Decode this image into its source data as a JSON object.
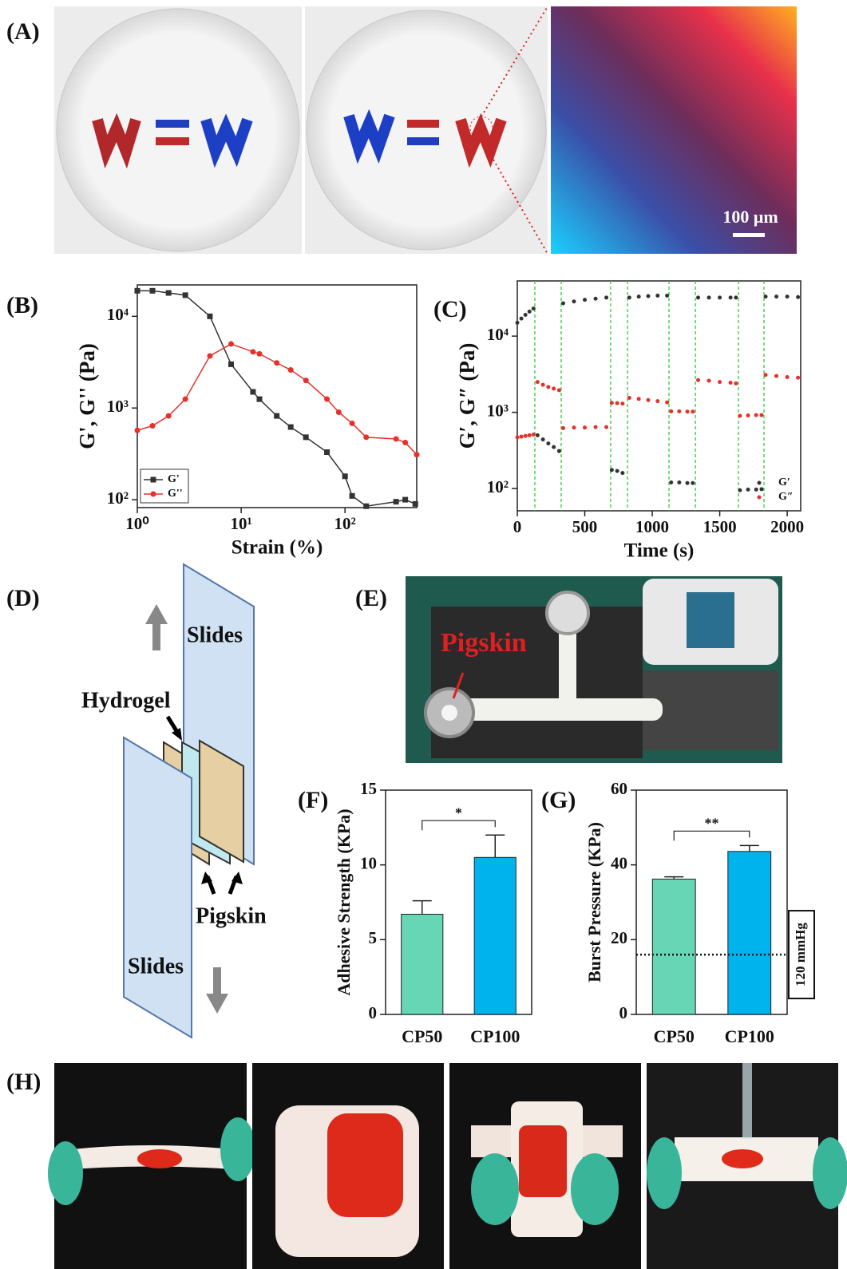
{
  "panel_labels": [
    "(A)",
    "(B)",
    "(C)",
    "(D)",
    "(E)",
    "(F)",
    "(G)",
    "(H)"
  ],
  "scale_bar": "100 μm",
  "diagram": {
    "top_slide": "Slides",
    "hydrogel": "Hydrogel",
    "pigskin": "Pigskin",
    "bottom_slide": "Slides"
  },
  "photo_label": "Pigskin",
  "chart_data": [
    {
      "type": "line",
      "y_label": "G', G'' (Pa)",
      "x_label": "Strain (%)",
      "xscale": "log",
      "yscale": "log",
      "xlim": [
        1,
        490
      ],
      "ylim": [
        82,
        22000
      ],
      "xticks": [
        {
          "value": 1,
          "label": "10⁰"
        },
        {
          "value": 10,
          "label": "10¹"
        },
        {
          "value": 100,
          "label": "10²"
        }
      ],
      "yticks": [
        {
          "value": 100,
          "label": "10²"
        },
        {
          "value": 1000,
          "label": "10³"
        },
        {
          "value": 10000,
          "label": "10⁴"
        }
      ],
      "legend": "lower left",
      "series": [
        {
          "name": "G'",
          "color": "#333333",
          "marker": "square",
          "x": [
            1,
            1.4,
            2,
            2.9,
            5,
            8,
            13,
            15,
            22,
            30,
            42,
            67,
            100,
            117,
            160,
            310,
            380,
            475
          ],
          "values": [
            19000,
            19000,
            18000,
            17000,
            10000,
            3000,
            1500,
            1250,
            820,
            620,
            480,
            330,
            180,
            110,
            85,
            95,
            100,
            90
          ]
        },
        {
          "name": "G''",
          "color": "#e8302a",
          "marker": "circle",
          "x": [
            1,
            1.4,
            2,
            2.9,
            5,
            8,
            13,
            15,
            22,
            30,
            42,
            67,
            87,
            117,
            160,
            310,
            380,
            490
          ],
          "values": [
            570,
            640,
            820,
            1250,
            3700,
            5000,
            4100,
            3900,
            3100,
            2600,
            2000,
            1250,
            900,
            680,
            480,
            460,
            420,
            310
          ]
        }
      ]
    },
    {
      "type": "scatter",
      "y_label": "G′, G″ (Pa)",
      "x_label": "Time (s)",
      "yscale": "log",
      "xlim": [
        0,
        2100
      ],
      "ylim": [
        51,
        53000
      ],
      "xticks": [
        0,
        500,
        1000,
        1500,
        2000
      ],
      "yticks": [
        {
          "value": 100,
          "label": "10²"
        },
        {
          "value": 1000,
          "label": "10³"
        },
        {
          "value": 10000,
          "label": "10⁴"
        }
      ],
      "legend": "lower right",
      "switch_times": [
        130,
        325,
        692,
        817,
        1124,
        1320,
        1639,
        1828
      ],
      "switch_color": "#33cc33",
      "x": [
        0,
        30,
        60,
        90,
        120,
        150,
        190,
        230,
        270,
        310,
        340,
        420,
        500,
        580,
        660,
        700,
        740,
        780,
        830,
        900,
        970,
        1040,
        1110,
        1140,
        1200,
        1260,
        1300,
        1340,
        1420,
        1500,
        1580,
        1620,
        1650,
        1710,
        1770,
        1810,
        1840,
        1920,
        2000,
        2080
      ],
      "series": [
        {
          "name": "G′",
          "color": "#333333",
          "values": [
            15000,
            17000,
            19000,
            21000,
            23000,
            500,
            440,
            390,
            350,
            310,
            27000,
            28500,
            30000,
            31000,
            32000,
            175,
            170,
            160,
            32000,
            33000,
            33500,
            34000,
            34000,
            120,
            120,
            118,
            118,
            32000,
            32000,
            32000,
            32000,
            32000,
            95,
            97,
            97,
            98,
            33000,
            33000,
            33000,
            32500
          ]
        },
        {
          "name": "G″",
          "color": "#e8302a",
          "values": [
            470,
            480,
            490,
            500,
            510,
            2500,
            2300,
            2150,
            2050,
            1950,
            620,
            630,
            630,
            640,
            640,
            1330,
            1320,
            1300,
            1550,
            1500,
            1450,
            1400,
            1350,
            1030,
            1030,
            1020,
            1020,
            2650,
            2600,
            2500,
            2450,
            2400,
            900,
            910,
            920,
            920,
            3100,
            3000,
            2900,
            2850
          ]
        }
      ]
    },
    {
      "type": "bar",
      "y_label": "Adhesive Strength (KPa)",
      "categories": [
        "CP50",
        "CP100"
      ],
      "values": [
        6.7,
        10.5
      ],
      "errors": [
        0.9,
        1.5
      ],
      "colors": [
        "#66d6b5",
        "#00b3ec"
      ],
      "ylim": [
        0,
        15
      ],
      "yticks": [
        0,
        5,
        10,
        15
      ],
      "significance": "*"
    },
    {
      "type": "bar",
      "y_label": "Burst Pressure (KPa)",
      "categories": [
        "CP50",
        "CP100"
      ],
      "values": [
        36.2,
        43.6
      ],
      "errors": [
        0.6,
        1.6
      ],
      "colors": [
        "#66d6b5",
        "#00b3ec"
      ],
      "ylim": [
        0,
        60
      ],
      "yticks": [
        0,
        20,
        40,
        60
      ],
      "significance": "**",
      "ref_line": {
        "value": 16,
        "label": "120 mmHg"
      }
    }
  ]
}
